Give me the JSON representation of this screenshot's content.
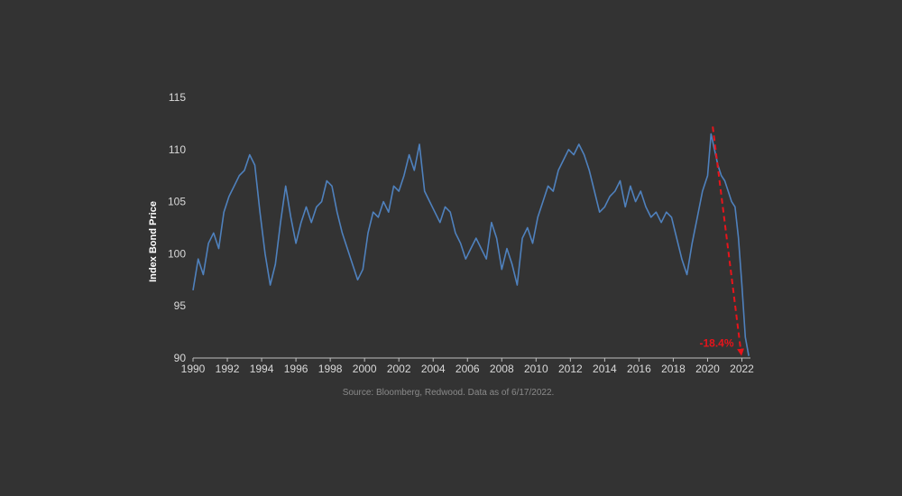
{
  "chart_data": {
    "type": "line",
    "ylabel": "Index Bond Price",
    "xlabel": "",
    "xlim": [
      1990,
      2022.5
    ],
    "ylim": [
      90,
      115
    ],
    "xticks": [
      "1990",
      "1992",
      "1994",
      "1996",
      "1998",
      "2000",
      "2002",
      "2004",
      "2006",
      "2008",
      "2010",
      "2012",
      "2014",
      "2016",
      "2018",
      "2020",
      "2022"
    ],
    "yticks": [
      "90",
      "95",
      "100",
      "105",
      "110",
      "115"
    ],
    "grid": false,
    "source": "Source: Bloomberg, Redwood. Data as of 6/17/2022.",
    "line_color": "#4f81bd",
    "annotation": {
      "text": "-18.4%",
      "color": "#e8141b",
      "from": [
        2020.3,
        112.2
      ],
      "to": [
        2021.95,
        90.2
      ]
    },
    "series": [
      {
        "x": [
          1990.0,
          1990.3,
          1990.6,
          1990.9,
          1991.2,
          1991.5,
          1991.8,
          1992.1,
          1992.4,
          1992.7,
          1993.0,
          1993.3,
          1993.6,
          1993.9,
          1994.2,
          1994.5,
          1994.8,
          1995.1,
          1995.4,
          1995.7,
          1996.0,
          1996.3,
          1996.6,
          1996.9,
          1997.2,
          1997.5,
          1997.8,
          1998.1,
          1998.4,
          1998.7,
          1999.0,
          1999.3,
          1999.6,
          1999.9,
          2000.2,
          2000.5,
          2000.8,
          2001.1,
          2001.4,
          2001.7,
          2002.0,
          2002.3,
          2002.6,
          2002.9,
          2003.2,
          2003.5,
          2003.8,
          2004.1,
          2004.4,
          2004.7,
          2005.0,
          2005.3,
          2005.6,
          2005.9,
          2006.2,
          2006.5,
          2006.8,
          2007.1,
          2007.4,
          2007.7,
          2008.0,
          2008.3,
          2008.6,
          2008.9,
          2009.2,
          2009.5,
          2009.8,
          2010.1,
          2010.4,
          2010.7,
          2011.0,
          2011.3,
          2011.6,
          2011.9,
          2012.2,
          2012.5,
          2012.8,
          2013.1,
          2013.4,
          2013.7,
          2014.0,
          2014.3,
          2014.6,
          2014.9,
          2015.2,
          2015.5,
          2015.8,
          2016.1,
          2016.4,
          2016.7,
          2017.0,
          2017.3,
          2017.6,
          2017.9,
          2018.2,
          2018.5,
          2018.8,
          2019.1,
          2019.4,
          2019.7,
          2020.0,
          2020.2,
          2020.4,
          2020.6,
          2020.8,
          2021.0,
          2021.2,
          2021.4,
          2021.6,
          2021.8,
          2022.0,
          2022.2,
          2022.4
        ],
        "y": [
          96.5,
          99.5,
          98.0,
          101.0,
          102.0,
          100.5,
          104.0,
          105.5,
          106.5,
          107.5,
          108.0,
          109.5,
          108.5,
          104.0,
          100.0,
          97.0,
          99.0,
          103.0,
          106.5,
          103.5,
          101.0,
          103.0,
          104.5,
          103.0,
          104.5,
          105.0,
          107.0,
          106.5,
          104.0,
          102.0,
          100.5,
          99.0,
          97.5,
          98.5,
          102.0,
          104.0,
          103.5,
          105.0,
          104.0,
          106.5,
          106.0,
          107.5,
          109.5,
          108.0,
          110.5,
          106.0,
          105.0,
          104.0,
          103.0,
          104.5,
          104.0,
          102.0,
          101.0,
          99.5,
          100.5,
          101.5,
          100.5,
          99.5,
          103.0,
          101.5,
          98.5,
          100.5,
          99.0,
          97.0,
          101.5,
          102.5,
          101.0,
          103.5,
          105.0,
          106.5,
          106.0,
          108.0,
          109.0,
          110.0,
          109.5,
          110.5,
          109.5,
          108.0,
          106.0,
          104.0,
          104.5,
          105.5,
          106.0,
          107.0,
          104.5,
          106.5,
          105.0,
          106.0,
          104.5,
          103.5,
          104.0,
          103.0,
          104.0,
          103.5,
          101.5,
          99.5,
          98.0,
          101.0,
          103.5,
          106.0,
          107.5,
          111.5,
          110.0,
          108.5,
          107.5,
          107.0,
          106.0,
          105.0,
          104.5,
          101.5,
          97.0,
          92.0,
          90.2
        ]
      }
    ]
  }
}
